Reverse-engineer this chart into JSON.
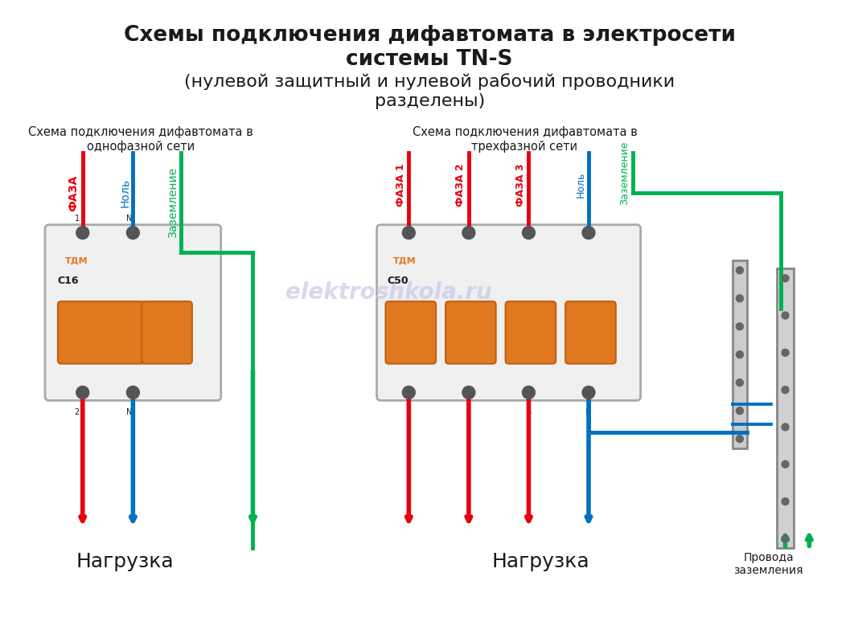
{
  "title_line1": "Схемы подключения дифавтомата в электросети",
  "title_line2": "системы TN-S",
  "title_line3": "(нулевой защитный и нулевой рабочий проводники",
  "title_line4": "разделены)",
  "subtitle_left": "Схема подключения дифавтомата в\nоднофазной сети",
  "subtitle_right": "Схема подключения дифавтомата в\nтрехфазной сети",
  "label_faza": "ФАЗА",
  "label_nol": "Ноль",
  "label_zazemlenie": "Заземление",
  "label_faza1": "ФАЗА 1",
  "label_faza2": "ФАЗА 2",
  "label_faza3": "ФАЗА 3",
  "label_nol2": "Ноль",
  "label_zazemlenie2": "Заземление",
  "label_nagruzka": "Нагрузка",
  "label_provoda": "Провода\nзаземления",
  "watermark": "elektroshkola.ru",
  "color_red": "#e8000e",
  "color_blue": "#0070c0",
  "color_green": "#00b050",
  "color_black": "#1a1a1a",
  "color_bg": "#f5f5f5",
  "color_device_body": "#e8e8e8",
  "color_device_accent": "#e07820",
  "figsize": [
    10.62,
    7.94
  ],
  "dpi": 100
}
